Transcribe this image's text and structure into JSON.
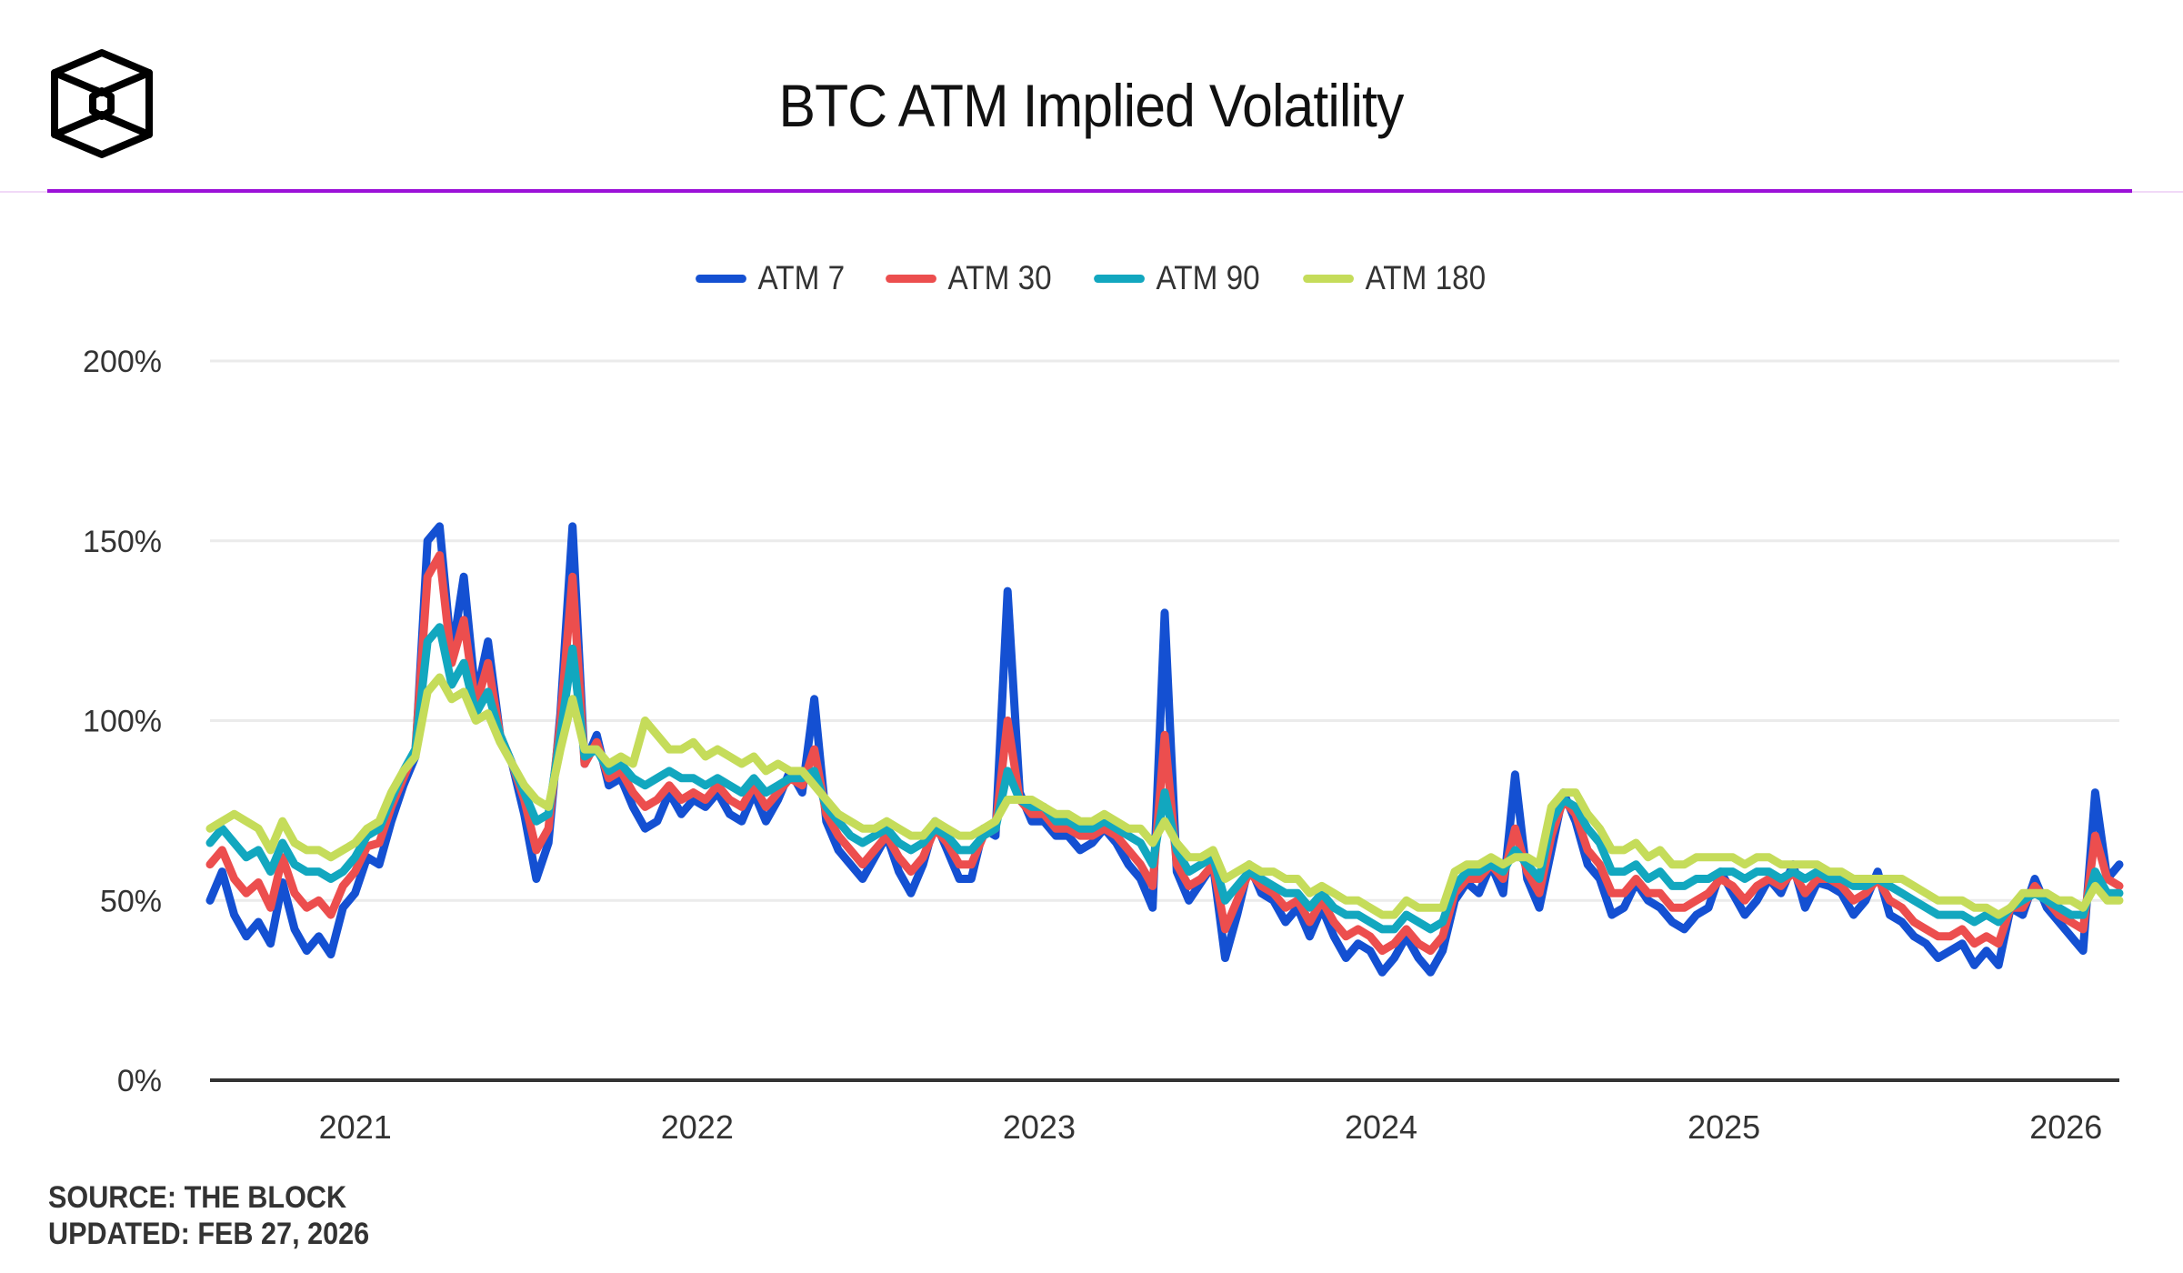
{
  "header": {
    "logo": "the-block-cube-logo",
    "title": "BTC ATM Implied Volatility"
  },
  "footer": {
    "source": "SOURCE: THE BLOCK",
    "updated": "UPDATED: FEB 27, 2026"
  },
  "chart_data": {
    "type": "line",
    "title": "BTC ATM Implied Volatility",
    "xlabel": "",
    "ylabel": "",
    "x_start": "2020-07-30",
    "x_end": "2026-02-27",
    "x_step": "biweekly",
    "x_ticks": [
      "2021",
      "2022",
      "2023",
      "2024",
      "2025",
      "2026"
    ],
    "y_ticks": [
      "0%",
      "50%",
      "100%",
      "150%",
      "200%"
    ],
    "ylim": [
      0,
      200
    ],
    "y_unit": "%",
    "grid": true,
    "legend_position": "top-center",
    "series": [
      {
        "name": "ATM 7",
        "color": "#1450d2",
        "values": [
          50,
          58,
          46,
          40,
          44,
          38,
          55,
          42,
          36,
          40,
          35,
          48,
          52,
          62,
          60,
          72,
          82,
          90,
          150,
          154,
          118,
          140,
          106,
          122,
          96,
          88,
          74,
          56,
          66,
          102,
          154,
          88,
          96,
          82,
          84,
          76,
          70,
          72,
          80,
          74,
          78,
          76,
          80,
          74,
          72,
          80,
          72,
          78,
          86,
          80,
          106,
          72,
          64,
          60,
          56,
          62,
          68,
          58,
          52,
          60,
          72,
          64,
          56,
          56,
          70,
          68,
          136,
          80,
          72,
          72,
          68,
          68,
          64,
          66,
          70,
          66,
          60,
          56,
          48,
          130,
          58,
          50,
          55,
          60,
          34,
          46,
          60,
          52,
          50,
          44,
          48,
          40,
          48,
          40,
          34,
          38,
          36,
          30,
          34,
          40,
          34,
          30,
          36,
          50,
          55,
          52,
          60,
          52,
          85,
          56,
          48,
          64,
          80,
          72,
          60,
          56,
          46,
          48,
          55,
          50,
          48,
          44,
          42,
          46,
          48,
          58,
          52,
          46,
          50,
          56,
          52,
          60,
          48,
          55,
          54,
          52,
          46,
          50,
          58,
          46,
          44,
          40,
          38,
          34,
          36,
          38,
          32,
          36,
          32,
          48,
          46,
          56,
          48,
          44,
          40,
          36,
          80,
          56,
          60
        ]
      },
      {
        "name": "ATM 30",
        "color": "#ec4e4e",
        "values": [
          60,
          64,
          56,
          52,
          55,
          48,
          62,
          52,
          48,
          50,
          46,
          54,
          58,
          65,
          66,
          76,
          84,
          92,
          140,
          146,
          116,
          128,
          104,
          116,
          96,
          88,
          78,
          64,
          70,
          100,
          140,
          88,
          94,
          84,
          86,
          80,
          76,
          78,
          82,
          78,
          80,
          78,
          82,
          78,
          76,
          82,
          76,
          80,
          84,
          82,
          92,
          74,
          68,
          64,
          60,
          64,
          68,
          62,
          58,
          62,
          70,
          66,
          60,
          60,
          68,
          70,
          100,
          78,
          74,
          74,
          70,
          70,
          68,
          68,
          70,
          68,
          64,
          60,
          54,
          96,
          60,
          54,
          56,
          60,
          42,
          50,
          58,
          54,
          52,
          48,
          50,
          44,
          50,
          44,
          40,
          42,
          40,
          36,
          38,
          42,
          38,
          36,
          40,
          52,
          56,
          56,
          60,
          56,
          70,
          58,
          52,
          68,
          78,
          74,
          64,
          60,
          52,
          52,
          56,
          52,
          52,
          48,
          48,
          50,
          52,
          56,
          54,
          50,
          54,
          56,
          54,
          58,
          52,
          56,
          56,
          54,
          50,
          52,
          56,
          50,
          48,
          44,
          42,
          40,
          40,
          42,
          38,
          40,
          38,
          48,
          48,
          54,
          50,
          46,
          44,
          42,
          68,
          56,
          54
        ]
      },
      {
        "name": "ATM 90",
        "color": "#12a7bf",
        "values": [
          66,
          70,
          66,
          62,
          64,
          58,
          66,
          60,
          58,
          58,
          56,
          58,
          62,
          68,
          70,
          78,
          86,
          92,
          122,
          126,
          110,
          116,
          102,
          108,
          96,
          88,
          80,
          72,
          74,
          96,
          120,
          90,
          92,
          86,
          88,
          84,
          82,
          84,
          86,
          84,
          84,
          82,
          84,
          82,
          80,
          84,
          80,
          82,
          84,
          84,
          86,
          76,
          72,
          68,
          66,
          68,
          70,
          66,
          64,
          66,
          70,
          68,
          64,
          64,
          68,
          70,
          86,
          78,
          76,
          76,
          72,
          72,
          70,
          70,
          72,
          70,
          68,
          66,
          60,
          80,
          64,
          58,
          60,
          62,
          50,
          54,
          58,
          56,
          54,
          52,
          52,
          48,
          52,
          48,
          46,
          46,
          44,
          42,
          42,
          46,
          44,
          42,
          44,
          54,
          58,
          58,
          60,
          58,
          64,
          60,
          56,
          72,
          78,
          76,
          70,
          66,
          58,
          58,
          60,
          56,
          58,
          54,
          54,
          56,
          56,
          58,
          58,
          56,
          58,
          58,
          56,
          58,
          56,
          58,
          56,
          56,
          54,
          54,
          56,
          54,
          52,
          50,
          48,
          46,
          46,
          46,
          44,
          46,
          44,
          48,
          50,
          52,
          50,
          48,
          46,
          46,
          58,
          52,
          52
        ]
      },
      {
        "name": "ATM 180",
        "color": "#c5dc5a",
        "values": [
          70,
          72,
          74,
          72,
          70,
          64,
          72,
          66,
          64,
          64,
          62,
          64,
          66,
          70,
          72,
          80,
          86,
          90,
          108,
          112,
          106,
          108,
          100,
          102,
          94,
          88,
          82,
          78,
          76,
          92,
          106,
          92,
          92,
          88,
          90,
          88,
          100,
          96,
          92,
          92,
          94,
          90,
          92,
          90,
          88,
          90,
          86,
          88,
          86,
          86,
          82,
          78,
          74,
          72,
          70,
          70,
          72,
          70,
          68,
          68,
          72,
          70,
          68,
          68,
          70,
          72,
          78,
          78,
          78,
          76,
          74,
          74,
          72,
          72,
          74,
          72,
          70,
          70,
          66,
          72,
          66,
          62,
          62,
          64,
          56,
          58,
          60,
          58,
          58,
          56,
          56,
          52,
          54,
          52,
          50,
          50,
          48,
          46,
          46,
          50,
          48,
          48,
          48,
          58,
          60,
          60,
          62,
          60,
          62,
          62,
          60,
          76,
          80,
          80,
          74,
          70,
          64,
          64,
          66,
          62,
          64,
          60,
          60,
          62,
          62,
          62,
          62,
          60,
          62,
          62,
          60,
          60,
          60,
          60,
          58,
          58,
          56,
          56,
          56,
          56,
          56,
          54,
          52,
          50,
          50,
          50,
          48,
          48,
          46,
          48,
          52,
          52,
          52,
          50,
          50,
          48,
          54,
          50,
          50
        ]
      }
    ]
  }
}
